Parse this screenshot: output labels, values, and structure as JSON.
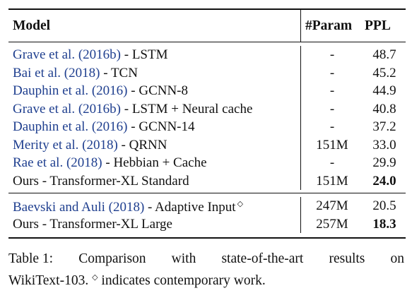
{
  "table": {
    "headers": {
      "model": "Model",
      "params": "#Param",
      "ppl": "PPL"
    },
    "group1": [
      {
        "cite": "Grave et al. (2016b)",
        "rest": " - LSTM",
        "params": "-",
        "ppl": "48.7",
        "ppl_bold": false
      },
      {
        "cite": "Bai et al. (2018)",
        "rest": " - TCN",
        "params": "-",
        "ppl": "45.2",
        "ppl_bold": false
      },
      {
        "cite": "Dauphin et al. (2016)",
        "rest": " - GCNN-8",
        "params": "-",
        "ppl": "44.9",
        "ppl_bold": false
      },
      {
        "cite": "Grave et al. (2016b)",
        "rest": " - LSTM + Neural cache",
        "params": "-",
        "ppl": "40.8",
        "ppl_bold": false
      },
      {
        "cite": "Dauphin et al. (2016)",
        "rest": " - GCNN-14",
        "params": "-",
        "ppl": "37.2",
        "ppl_bold": false
      },
      {
        "cite": "Merity et al. (2018)",
        "rest": " - QRNN",
        "params": "151M",
        "ppl": "33.0",
        "ppl_bold": false
      },
      {
        "cite": "Rae et al. (2018)",
        "rest": " - Hebbian + Cache",
        "params": "-",
        "ppl": "29.9",
        "ppl_bold": false
      },
      {
        "cite": "",
        "rest": "Ours - Transformer-XL Standard",
        "params": "151M",
        "ppl": "24.0",
        "ppl_bold": true
      }
    ],
    "group2": [
      {
        "cite": "Baevski and Auli (2018)",
        "rest": " - Adaptive Input",
        "sup": "◇",
        "params": "247M",
        "ppl": "20.5",
        "ppl_bold": false
      },
      {
        "cite": "",
        "rest": "Ours - Transformer-XL Large",
        "sup": "",
        "params": "257M",
        "ppl": "18.3",
        "ppl_bold": true
      }
    ]
  },
  "caption": {
    "label": "Table 1:",
    "line1_rest": [
      "Comparison",
      "with",
      "state-of-the-art",
      "results",
      "on"
    ],
    "line2_a": "WikiText-103. ",
    "line2_sup": "◇",
    "line2_b": " indicates contemporary work."
  }
}
